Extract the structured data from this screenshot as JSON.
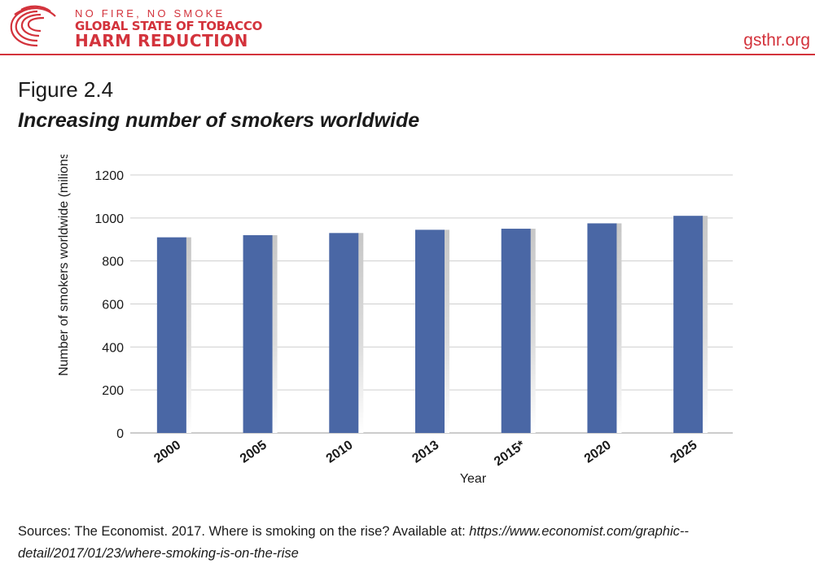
{
  "brand": {
    "line1": "NO FIRE, NO SMOKE",
    "line2": "GLOBAL STATE OF TOBACCO",
    "line3": "HARM REDUCTION",
    "site": "gsthr.org",
    "logo_icon": "globe-swirl-icon",
    "accent_color": "#d3333c"
  },
  "figure": {
    "label": "Figure 2.4",
    "title": "Increasing number of smokers worldwide"
  },
  "chart_data": {
    "type": "bar",
    "categories": [
      "2000",
      "2005",
      "2010",
      "2013",
      "2015*",
      "2020",
      "2025"
    ],
    "values": [
      910,
      920,
      930,
      945,
      950,
      975,
      1010
    ],
    "xlabel": "Year",
    "ylabel": "Number of smokers worldwide (milions)",
    "ylim": [
      0,
      1200
    ],
    "yticks": [
      0,
      200,
      400,
      600,
      800,
      1000,
      1200
    ],
    "grid": true,
    "legend": "none",
    "bar_color": "#4a67a5"
  },
  "sources": {
    "text": "Sources: The Economist. 2017. Where is smoking on the rise? Available at: ",
    "url": "https://www.economist.com/graphic--detail/2017/01/23/where-smoking-is-on-the-rise"
  }
}
